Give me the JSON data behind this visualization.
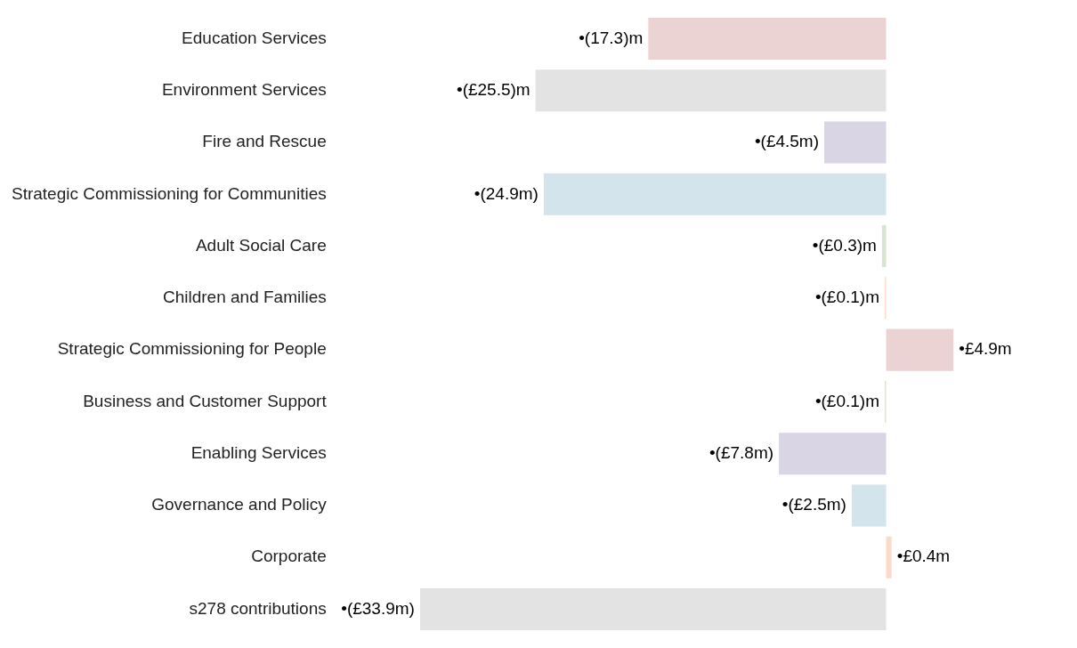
{
  "chart_data": {
    "type": "bar",
    "orientation": "horizontal",
    "categories": [
      "Education Services",
      "Environment Services",
      "Fire and Rescue",
      "Strategic Commissioning for Communities",
      "Adult Social Care",
      "Children and Families",
      "Strategic Commissioning for People",
      "Business and Customer Support",
      "Enabling Services",
      "Governance and Policy",
      "Corporate",
      "s278 contributions"
    ],
    "values": [
      -17.3,
      -25.5,
      -4.5,
      -24.9,
      -0.3,
      -0.1,
      4.9,
      -0.1,
      -7.8,
      -2.5,
      0.4,
      -33.9
    ],
    "value_labels": [
      "•(17.3)m",
      "•(£25.5)m",
      "•(£4.5m)",
      "•(24.9m)",
      "•(£0.3)m",
      "•(£0.1)m",
      "•£4.9m",
      "•(£0.1)m",
      "•(£7.8m)",
      "•(£2.5m)",
      "•£0.4m",
      "•(£33.9m)"
    ],
    "colors": [
      "#ebd3d3",
      "#e3e3e3",
      "#dad5e4",
      "#d3e4ec",
      "#d7e4d0",
      "#fbdbcb",
      "#ebd3d3",
      "#dde7d1",
      "#dad5e4",
      "#d3e4ec",
      "#fbdbcb",
      "#e3e3e3"
    ],
    "legend": false
  }
}
